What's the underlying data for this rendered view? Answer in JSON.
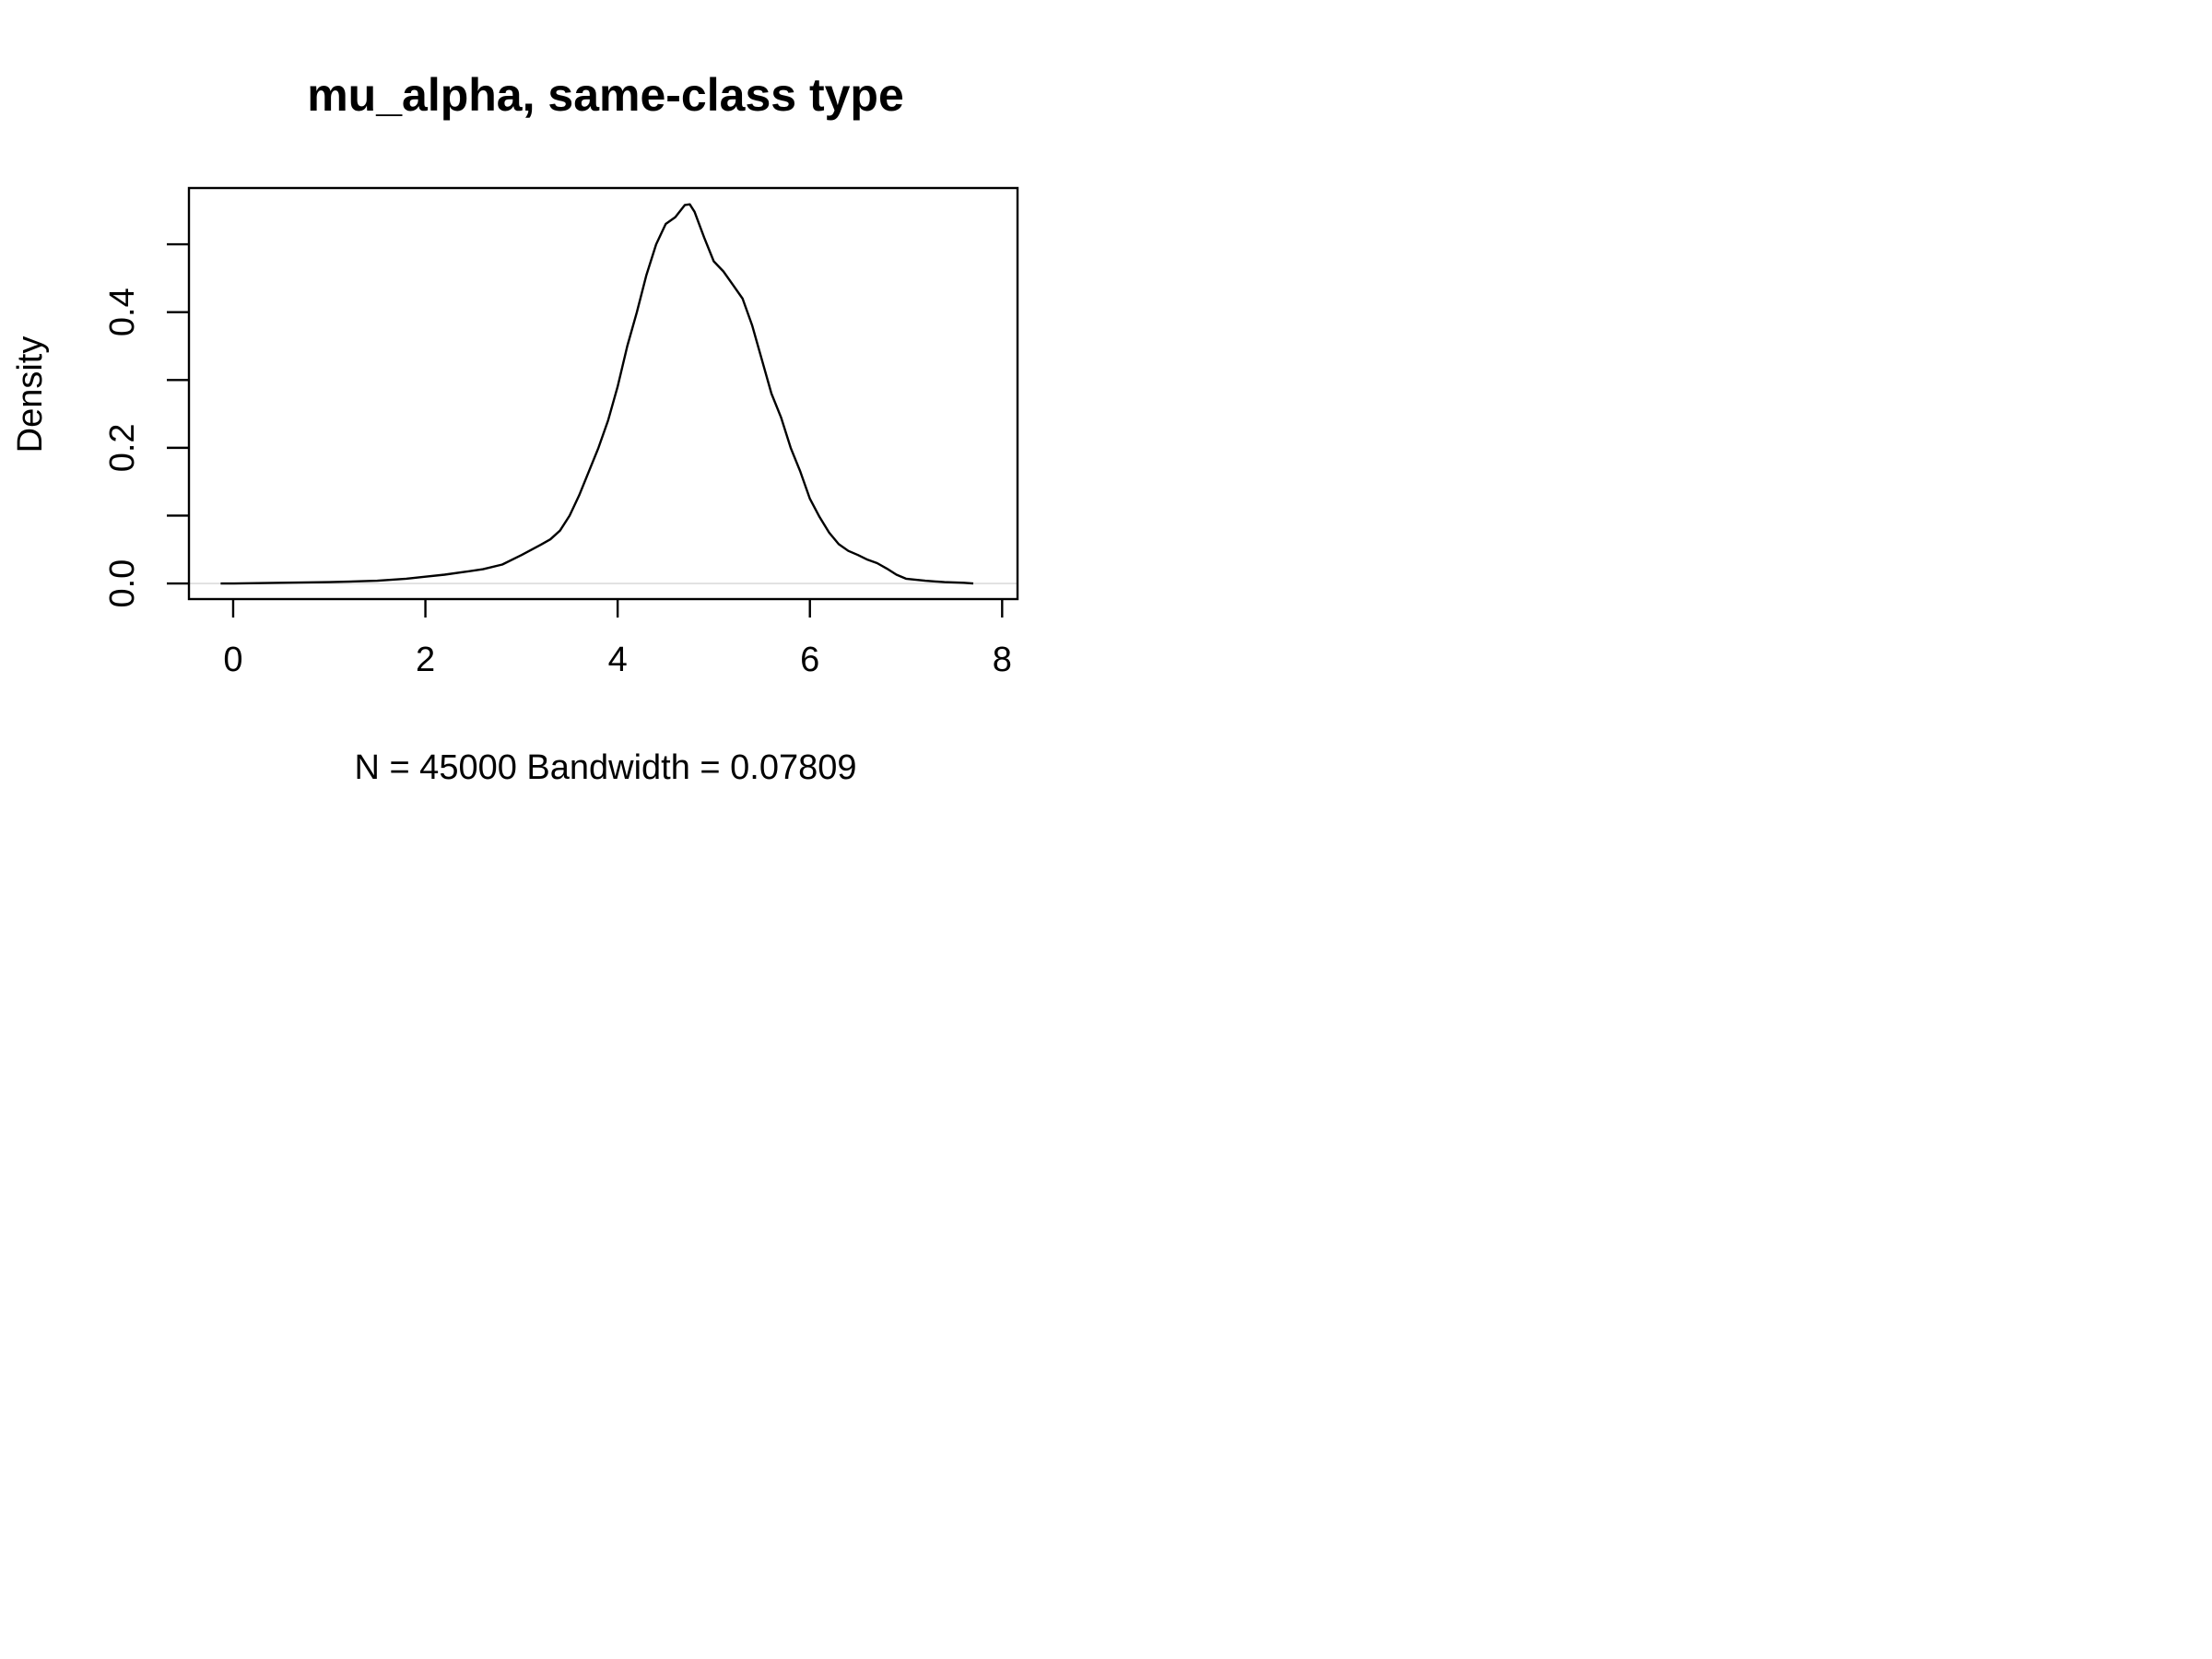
{
  "chart_data": {
    "type": "line",
    "title": "mu_alpha,  same-class type",
    "xlabel": "N = 45000   Bandwidth = 0.07809",
    "ylabel": "Density",
    "xlim": [
      -0.46,
      8.16
    ],
    "ylim": [
      -0.023,
      0.583
    ],
    "x_ticks": [
      0,
      2,
      4,
      6,
      8
    ],
    "x_tick_labels": [
      "0",
      "2",
      "4",
      "6",
      "8"
    ],
    "y_ticks": [
      0.0,
      0.1,
      0.2,
      0.3,
      0.4,
      0.5
    ],
    "y_tick_labels": [
      "0.0",
      "",
      "0.2",
      "",
      "0.4",
      ""
    ],
    "grid": false,
    "zero_line": true,
    "series": [
      {
        "x": [
          -0.13,
          0.0,
          0.5,
          1.0,
          1.5,
          1.8,
          2.0,
          2.2,
          2.4,
          2.6,
          2.8,
          3.0,
          3.2,
          3.3,
          3.4,
          3.5,
          3.6,
          3.7,
          3.8,
          3.9,
          4.0,
          4.1,
          4.2,
          4.3,
          4.4,
          4.5,
          4.6,
          4.7,
          4.75,
          4.8,
          4.9,
          5.0,
          5.1,
          5.2,
          5.3,
          5.4,
          5.5,
          5.6,
          5.7,
          5.8,
          5.9,
          6.0,
          6.1,
          6.2,
          6.3,
          6.4,
          6.5,
          6.6,
          6.7,
          6.8,
          6.9,
          7.0,
          7.2,
          7.4,
          7.6,
          7.7
        ],
        "y": [
          0.0,
          0.0,
          0.001,
          0.002,
          0.004,
          0.007,
          0.01,
          0.013,
          0.017,
          0.021,
          0.028,
          0.042,
          0.057,
          0.065,
          0.078,
          0.1,
          0.13,
          0.165,
          0.2,
          0.24,
          0.29,
          0.35,
          0.4,
          0.455,
          0.5,
          0.53,
          0.54,
          0.558,
          0.559,
          0.548,
          0.51,
          0.475,
          0.46,
          0.44,
          0.42,
          0.38,
          0.33,
          0.28,
          0.245,
          0.2,
          0.165,
          0.125,
          0.098,
          0.075,
          0.058,
          0.048,
          0.042,
          0.035,
          0.03,
          0.022,
          0.013,
          0.007,
          0.004,
          0.002,
          0.001,
          0.0
        ]
      }
    ]
  }
}
